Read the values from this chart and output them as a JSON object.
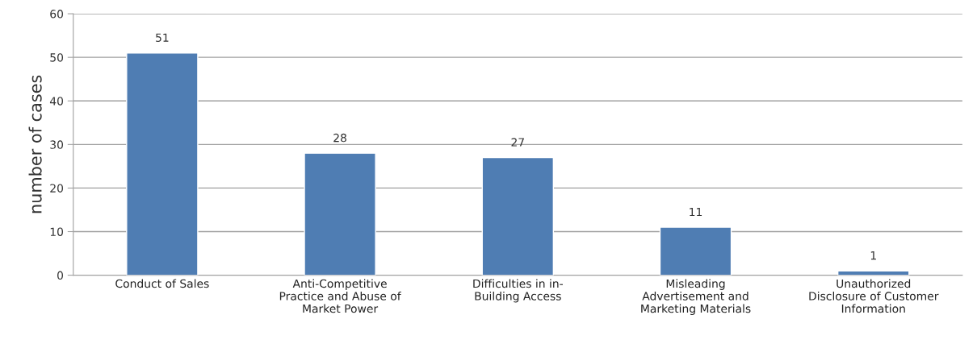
{
  "chart_data": {
    "type": "bar",
    "ylabel": "number of cases",
    "categories": [
      "Conduct of Sales",
      "Anti-Competitive\nPractice and Abuse of\nMarket Power",
      "Difficulties in in-\nBuilding Access",
      "Misleading\nAdvertisement and\nMarketing Materials",
      "Unauthorized\nDisclosure of Customer\nInformation"
    ],
    "values": [
      51,
      28,
      27,
      11,
      1
    ],
    "color": "#4f7db3",
    "data_labels": true,
    "ylim": [
      0,
      60
    ],
    "yticks": [
      0,
      10,
      20,
      30,
      40,
      50,
      60
    ],
    "grid": "y",
    "legend": false
  }
}
